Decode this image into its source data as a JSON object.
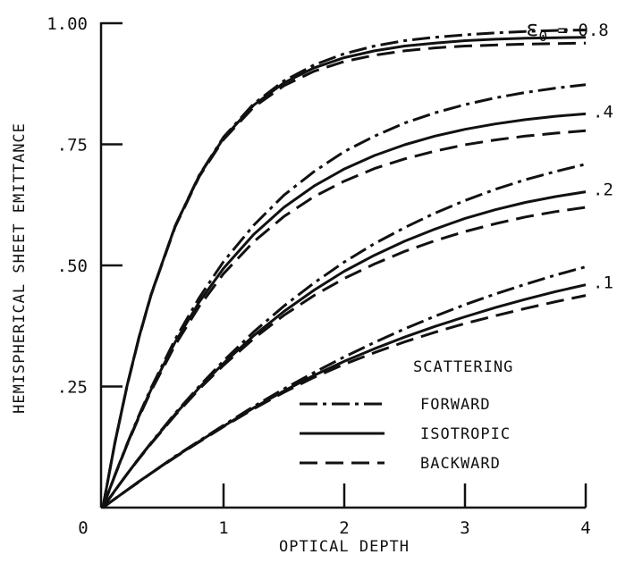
{
  "chart_data": {
    "type": "line",
    "xlabel": "OPTICAL DEPTH",
    "ylabel": "HEMISPHERICAL SHEET EMITTANCE",
    "xlim": [
      0,
      4
    ],
    "ylim": [
      0,
      1
    ],
    "x_ticks": [
      {
        "value": 0,
        "label": "0"
      },
      {
        "value": 1,
        "label": "1"
      },
      {
        "value": 2,
        "label": "2"
      },
      {
        "value": 3,
        "label": "3"
      },
      {
        "value": 4,
        "label": "4"
      }
    ],
    "y_ticks": [
      {
        "value": 0.25,
        "label": ".25"
      },
      {
        "value": 0.5,
        "label": ".50"
      },
      {
        "value": 0.75,
        "label": ".75"
      },
      {
        "value": 1.0,
        "label": "1.00"
      }
    ],
    "grid": false,
    "legend": {
      "title": "SCATTERING",
      "entries": [
        {
          "label": "FORWARD",
          "style": "dash-dot"
        },
        {
          "label": "ISOTROPIC",
          "style": "solid"
        },
        {
          "label": "BACKWARD",
          "style": "dashed"
        }
      ],
      "placement": "lower-right"
    },
    "annotations": {
      "epsilon_prefix": "ε",
      "epsilon_sub": "0",
      "epsilon_suffix": " = 0.8"
    },
    "x": [
      0,
      0.1,
      0.2,
      0.3,
      0.4,
      0.6,
      0.8,
      1.0,
      1.25,
      1.5,
      1.75,
      2.0,
      2.25,
      2.5,
      2.75,
      3.0,
      3.25,
      3.5,
      3.75,
      4.0
    ],
    "curve_groups": [
      {
        "label": ".1",
        "series": [
          {
            "style": "dash-dot",
            "values": [
              0,
              0.018,
              0.036,
              0.054,
              0.071,
              0.106,
              0.138,
              0.17,
              0.209,
              0.245,
              0.279,
              0.311,
              0.341,
              0.369,
              0.395,
              0.419,
              0.441,
              0.461,
              0.48,
              0.497
            ]
          },
          {
            "style": "solid",
            "values": [
              0,
              0.018,
              0.036,
              0.054,
              0.071,
              0.105,
              0.137,
              0.168,
              0.206,
              0.241,
              0.273,
              0.302,
              0.328,
              0.352,
              0.374,
              0.394,
              0.413,
              0.43,
              0.446,
              0.46
            ]
          },
          {
            "style": "dashed",
            "values": [
              0,
              0.018,
              0.036,
              0.053,
              0.071,
              0.104,
              0.136,
              0.167,
              0.204,
              0.238,
              0.269,
              0.296,
              0.32,
              0.342,
              0.362,
              0.38,
              0.396,
              0.411,
              0.425,
              0.438
            ]
          }
        ]
      },
      {
        "label": ".2",
        "series": [
          {
            "style": "dash-dot",
            "values": [
              0,
              0.035,
              0.069,
              0.102,
              0.134,
              0.195,
              0.251,
              0.303,
              0.363,
              0.416,
              0.464,
              0.507,
              0.545,
              0.578,
              0.608,
              0.634,
              0.657,
              0.677,
              0.694,
              0.709
            ]
          },
          {
            "style": "solid",
            "values": [
              0,
              0.035,
              0.069,
              0.102,
              0.133,
              0.193,
              0.248,
              0.298,
              0.355,
              0.405,
              0.449,
              0.488,
              0.521,
              0.55,
              0.575,
              0.597,
              0.615,
              0.63,
              0.642,
              0.652
            ]
          },
          {
            "style": "dashed",
            "values": [
              0,
              0.035,
              0.069,
              0.101,
              0.132,
              0.191,
              0.245,
              0.294,
              0.349,
              0.397,
              0.438,
              0.473,
              0.503,
              0.529,
              0.551,
              0.57,
              0.586,
              0.6,
              0.611,
              0.62
            ]
          }
        ]
      },
      {
        "label": ".4",
        "series": [
          {
            "style": "dash-dot",
            "values": [
              0,
              0.067,
              0.131,
              0.191,
              0.247,
              0.348,
              0.434,
              0.508,
              0.583,
              0.645,
              0.694,
              0.735,
              0.767,
              0.794,
              0.815,
              0.832,
              0.846,
              0.857,
              0.866,
              0.873
            ]
          },
          {
            "style": "solid",
            "values": [
              0,
              0.067,
              0.13,
              0.189,
              0.244,
              0.342,
              0.425,
              0.494,
              0.564,
              0.62,
              0.664,
              0.699,
              0.727,
              0.749,
              0.767,
              0.781,
              0.792,
              0.801,
              0.808,
              0.813
            ]
          },
          {
            "style": "dashed",
            "values": [
              0,
              0.066,
              0.129,
              0.187,
              0.241,
              0.336,
              0.416,
              0.483,
              0.549,
              0.601,
              0.642,
              0.674,
              0.7,
              0.72,
              0.736,
              0.749,
              0.759,
              0.767,
              0.773,
              0.778
            ]
          }
        ]
      },
      {
        "label": "",
        "series": [
          {
            "style": "dash-dot",
            "values": [
              0,
              0.134,
              0.251,
              0.352,
              0.44,
              0.582,
              0.687,
              0.765,
              0.834,
              0.881,
              0.914,
              0.937,
              0.953,
              0.964,
              0.971,
              0.976,
              0.98,
              0.983,
              0.985,
              0.986
            ]
          },
          {
            "style": "solid",
            "values": [
              0,
              0.134,
              0.251,
              0.352,
              0.44,
              0.582,
              0.686,
              0.763,
              0.831,
              0.877,
              0.908,
              0.929,
              0.943,
              0.953,
              0.959,
              0.964,
              0.967,
              0.969,
              0.97,
              0.971
            ]
          },
          {
            "style": "dashed",
            "values": [
              0,
              0.134,
              0.25,
              0.351,
              0.439,
              0.58,
              0.684,
              0.76,
              0.827,
              0.871,
              0.901,
              0.921,
              0.934,
              0.943,
              0.949,
              0.953,
              0.955,
              0.957,
              0.958,
              0.959
            ]
          }
        ]
      }
    ]
  }
}
